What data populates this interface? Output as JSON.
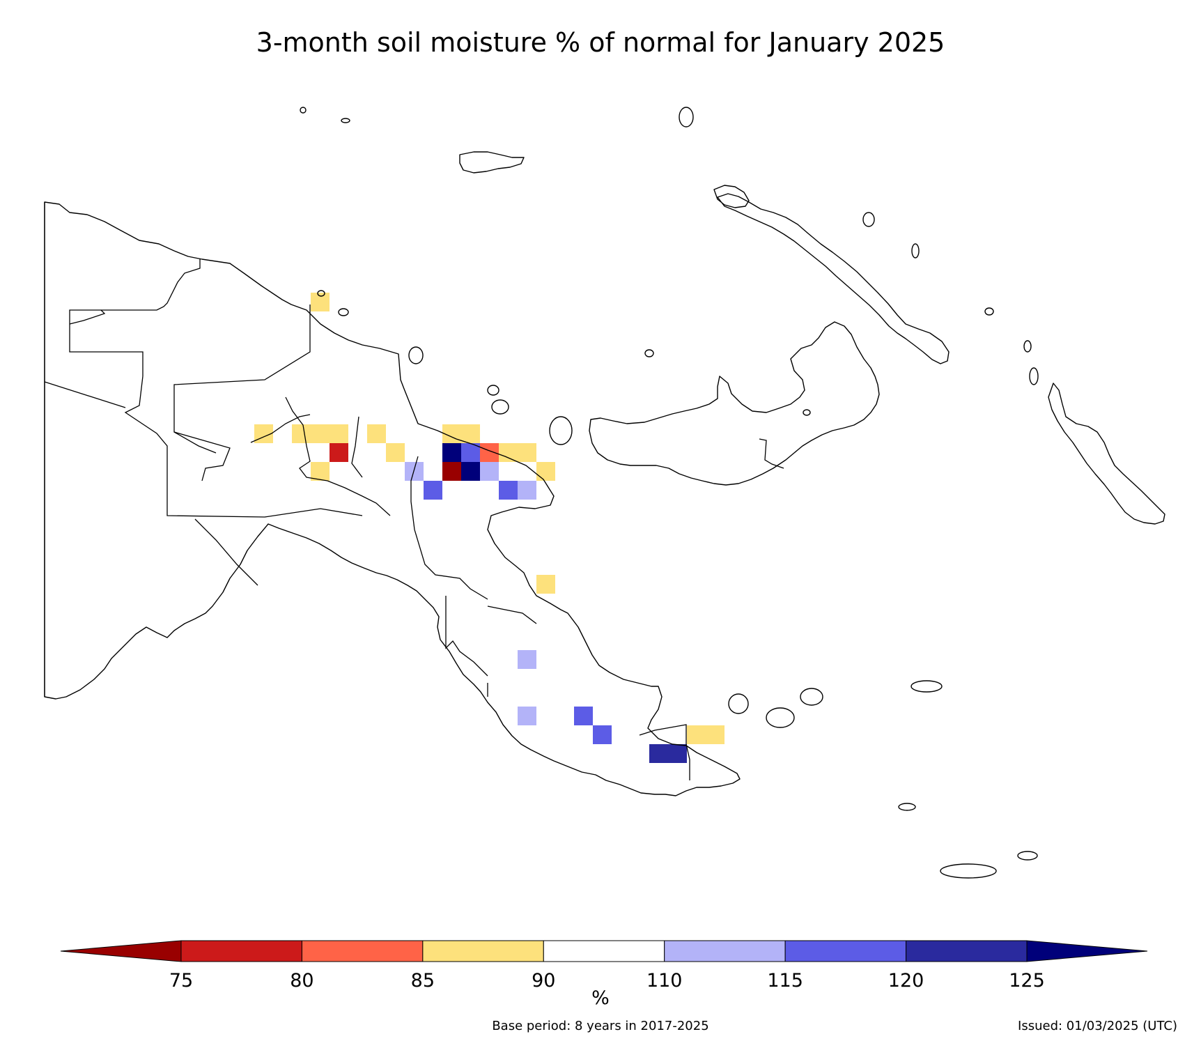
{
  "title": "3-month soil moisture % of normal for January 2025",
  "colorbar": {
    "unit": "%",
    "ticks": [
      "75",
      "80",
      "85",
      "90",
      "110",
      "115",
      "120",
      "125"
    ],
    "bins": [
      {
        "range": "<75",
        "color": "#990000",
        "extend": "min"
      },
      {
        "range": "75-80",
        "color": "#cc1a1a"
      },
      {
        "range": "80-85",
        "color": "#ff6347"
      },
      {
        "range": "85-90",
        "color": "#fde17c"
      },
      {
        "range": "90-110",
        "color": "#ffffff"
      },
      {
        "range": "110-115",
        "color": "#b3b3f8"
      },
      {
        "range": "115-120",
        "color": "#5c5ce6"
      },
      {
        "range": "120-125",
        "color": "#2a2a9e"
      },
      {
        "range": ">125",
        "color": "#00007a",
        "extend": "max"
      }
    ]
  },
  "footer": {
    "base_period": "Base period: 8 years in 2017-2025",
    "issued": "Issued: 01/03/2025 (UTC)"
  },
  "map_data": {
    "region": "Papua New Guinea",
    "grid_cells": [
      {
        "col": 13,
        "row": 0,
        "bin": "85-90"
      },
      {
        "col": 10,
        "row": 7,
        "bin": "85-90"
      },
      {
        "col": 12,
        "row": 7,
        "bin": "85-90"
      },
      {
        "col": 13,
        "row": 7,
        "bin": "85-90"
      },
      {
        "col": 14,
        "row": 7,
        "bin": "85-90"
      },
      {
        "col": 16,
        "row": 7,
        "bin": "85-90"
      },
      {
        "col": 20,
        "row": 7,
        "bin": "85-90"
      },
      {
        "col": 21,
        "row": 7,
        "bin": "85-90"
      },
      {
        "col": 14,
        "row": 8,
        "bin": "75-80"
      },
      {
        "col": 17,
        "row": 8,
        "bin": "85-90"
      },
      {
        "col": 20,
        "row": 8,
        "bin": ">125"
      },
      {
        "col": 21,
        "row": 8,
        "bin": "115-120"
      },
      {
        "col": 22,
        "row": 8,
        "bin": "80-85"
      },
      {
        "col": 23,
        "row": 8,
        "bin": "85-90"
      },
      {
        "col": 24,
        "row": 8,
        "bin": "85-90"
      },
      {
        "col": 13,
        "row": 9,
        "bin": "85-90"
      },
      {
        "col": 18,
        "row": 9,
        "bin": "110-115"
      },
      {
        "col": 20,
        "row": 9,
        "bin": "<75"
      },
      {
        "col": 21,
        "row": 9,
        "bin": ">125"
      },
      {
        "col": 22,
        "row": 9,
        "bin": "110-115"
      },
      {
        "col": 25,
        "row": 9,
        "bin": "85-90"
      },
      {
        "col": 19,
        "row": 10,
        "bin": "115-120"
      },
      {
        "col": 23,
        "row": 10,
        "bin": "115-120"
      },
      {
        "col": 24,
        "row": 10,
        "bin": "110-115"
      },
      {
        "col": 25,
        "row": 15,
        "bin": "85-90"
      },
      {
        "col": 24,
        "row": 19,
        "bin": "110-115"
      },
      {
        "col": 24,
        "row": 22,
        "bin": "110-115"
      },
      {
        "col": 27,
        "row": 22,
        "bin": "115-120"
      },
      {
        "col": 28,
        "row": 23,
        "bin": "115-120"
      },
      {
        "col": 31,
        "row": 24,
        "bin": "120-125"
      },
      {
        "col": 32,
        "row": 24,
        "bin": "120-125"
      },
      {
        "col": 33,
        "row": 23,
        "bin": "85-90"
      },
      {
        "col": 34,
        "row": 23,
        "bin": "85-90"
      }
    ]
  }
}
